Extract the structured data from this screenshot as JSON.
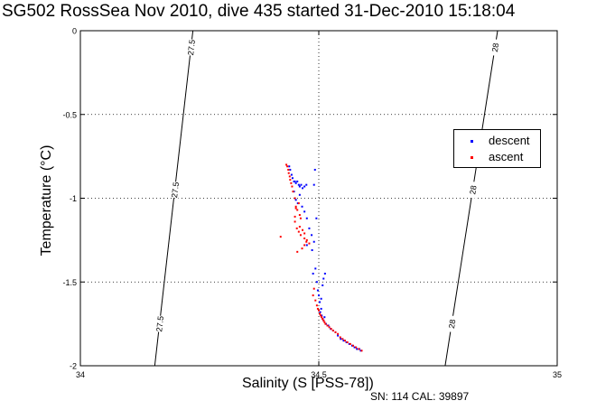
{
  "figure": {
    "title": "SG502 RossSea Nov 2010, dive 435 started 31-Dec-2010 15:18:04",
    "footer": "SN: 114  CAL: 39897"
  },
  "chart_data": {
    "type": "scatter",
    "title": "SG502 RossSea Nov 2010, dive 435 started 31-Dec-2010 15:18:04",
    "xlabel": "Salinity (S [PSS-78])",
    "ylabel": "Temperature (°C)",
    "xlim": [
      34,
      35
    ],
    "ylim": [
      -2,
      0
    ],
    "x_ticks": [
      "34",
      "34.5",
      "35"
    ],
    "y_ticks": [
      "0",
      "-0.5",
      "-1",
      "-1.5",
      "-2"
    ],
    "grid": "dotted",
    "legend_position": "right",
    "colors": {
      "descent": "#0000ff",
      "ascent": "#ff0000",
      "axes": "#000000"
    },
    "density_contours": [
      {
        "label": "27.5",
        "points": [
          [
            34.156,
            -2
          ],
          [
            34.236,
            0
          ]
        ],
        "labels_at_t": [
          -1.75,
          -0.95
        ]
      },
      {
        "label": "28",
        "points": [
          [
            34.765,
            -2
          ],
          [
            34.875,
            0
          ]
        ],
        "labels_at_t": [
          -1.75,
          -0.95,
          -0.1
        ]
      },
      {
        "label": "27.5",
        "points": [],
        "labels_at_t": [
          -0.1
        ]
      }
    ],
    "series": [
      {
        "name": "descent",
        "color": "#0000ff",
        "x": [
          34.438,
          34.44,
          34.443,
          34.445,
          34.448,
          34.45,
          34.452,
          34.455,
          34.458,
          34.46,
          34.463,
          34.466,
          34.47,
          34.474,
          34.448,
          34.452,
          34.456,
          34.46,
          34.465,
          34.47,
          34.475,
          34.48,
          34.485,
          34.475,
          34.49,
          34.486,
          34.492,
          34.495,
          34.49,
          34.493,
          34.488,
          34.496,
          34.498,
          34.5,
          34.502,
          34.505,
          34.503,
          34.506,
          34.508,
          34.51,
          34.512,
          34.505,
          34.508,
          34.51,
          34.513,
          34.515,
          34.52,
          34.525,
          34.53,
          34.535,
          34.54,
          34.546,
          34.552,
          34.558,
          34.564,
          34.57,
          34.575,
          34.58,
          34.585,
          34.588
        ],
        "y": [
          -0.81,
          -0.83,
          -0.86,
          -0.88,
          -0.9,
          -0.9,
          -0.91,
          -0.9,
          -0.92,
          -0.93,
          -0.92,
          -0.94,
          -0.93,
          -0.92,
          -0.96,
          -1.01,
          -1.03,
          -0.98,
          -1.05,
          -1.08,
          -1.12,
          -1.18,
          -1.22,
          -1.28,
          -1.26,
          -1.31,
          -0.83,
          -1.12,
          -0.92,
          -1.42,
          -1.45,
          -1.5,
          -1.55,
          -1.58,
          -1.62,
          -1.66,
          -1.68,
          -1.7,
          -1.72,
          -1.73,
          -1.71,
          -1.6,
          -1.52,
          -1.48,
          -1.45,
          -1.75,
          -1.76,
          -1.78,
          -1.79,
          -1.8,
          -1.82,
          -1.84,
          -1.85,
          -1.86,
          -1.87,
          -1.88,
          -1.89,
          -1.9,
          -1.9,
          -1.91
        ]
      },
      {
        "name": "ascent",
        "color": "#ff0000",
        "x": [
          34.432,
          34.434,
          34.436,
          34.437,
          34.439,
          34.44,
          34.442,
          34.444,
          34.446,
          34.45,
          34.452,
          34.455,
          34.458,
          34.46,
          34.462,
          34.45,
          34.454,
          34.458,
          34.462,
          34.466,
          34.47,
          34.474,
          34.47,
          34.465,
          34.455,
          34.46,
          34.47,
          34.475,
          34.48,
          34.42,
          34.45,
          34.452,
          34.49,
          34.488,
          34.493,
          34.496,
          34.498,
          34.5,
          34.502,
          34.504,
          34.506,
          34.508,
          34.51,
          34.512,
          34.514,
          34.518,
          34.522,
          34.526,
          34.53,
          34.535,
          34.54,
          34.545,
          34.55,
          34.555,
          34.56,
          34.566,
          34.572,
          34.578,
          34.584,
          34.59
        ],
        "y": [
          -0.8,
          -0.81,
          -0.83,
          -0.85,
          -0.87,
          -0.89,
          -0.91,
          -0.93,
          -0.96,
          -1.0,
          -1.05,
          -1.07,
          -1.03,
          -1.1,
          -1.12,
          -1.14,
          -1.18,
          -1.2,
          -1.22,
          -1.19,
          -1.24,
          -1.26,
          -1.28,
          -1.3,
          -1.32,
          -1.17,
          -1.21,
          -1.25,
          -1.27,
          -1.23,
          -1.11,
          -1.06,
          -1.54,
          -1.58,
          -1.61,
          -1.64,
          -1.66,
          -1.67,
          -1.69,
          -1.7,
          -1.71,
          -1.72,
          -1.73,
          -1.74,
          -1.75,
          -1.76,
          -1.77,
          -1.78,
          -1.79,
          -1.8,
          -1.81,
          -1.83,
          -1.84,
          -1.85,
          -1.86,
          -1.87,
          -1.88,
          -1.89,
          -1.9,
          -1.91
        ]
      }
    ]
  }
}
